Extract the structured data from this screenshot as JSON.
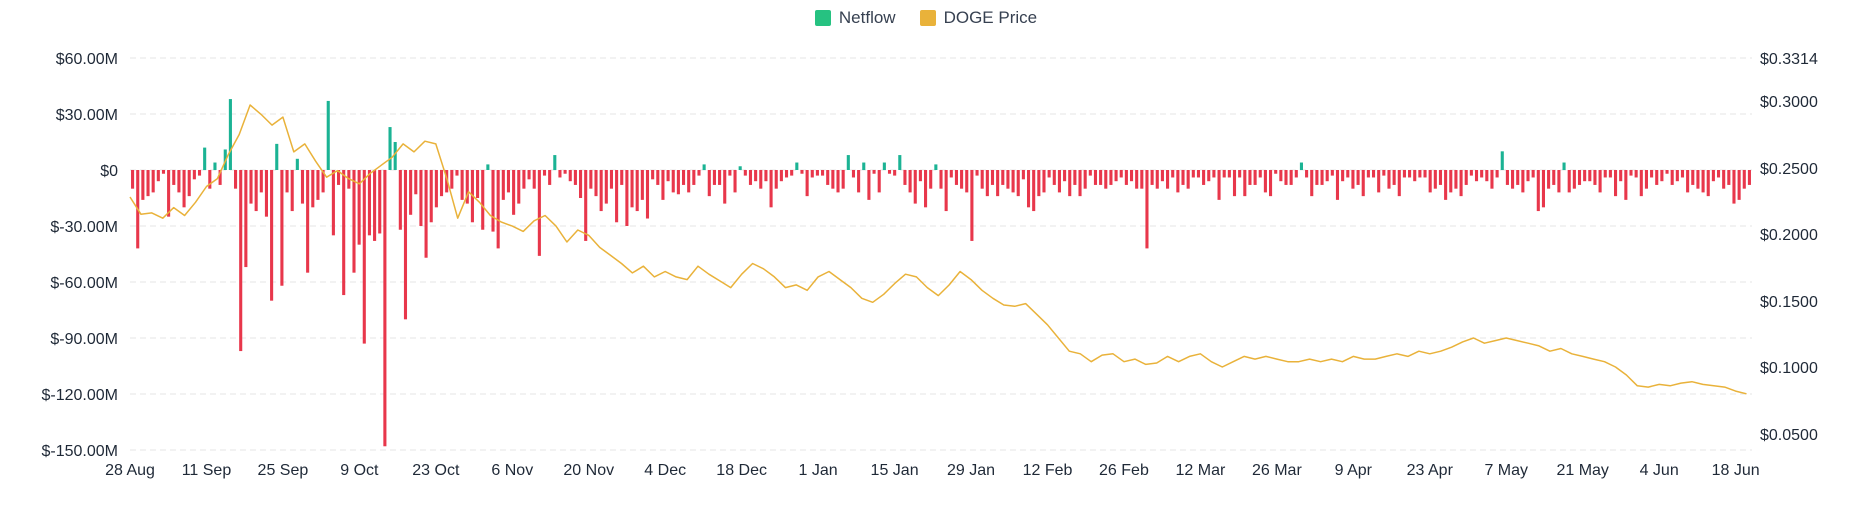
{
  "legend": {
    "netflow_label": "Netflow",
    "price_label": "DOGE Price"
  },
  "colors": {
    "netflow_positive": "#1bb394",
    "netflow_negative": "#e8374b",
    "price_line": "#e9b23a",
    "netflow_legend": "#26c281",
    "price_legend": "#e9b23a",
    "grid": "#e6e6e6"
  },
  "chart_data": {
    "type": "bar",
    "title": "",
    "xlabel": "",
    "ylabel": "",
    "ylim": [
      -150,
      60
    ],
    "y2lim": [
      0.05,
      0.3314
    ],
    "grid": true,
    "legend_position": "top-center",
    "y_ticks": [
      {
        "value": 60,
        "label": "$60.00M"
      },
      {
        "value": 30,
        "label": "$30.00M"
      },
      {
        "value": 0,
        "label": "$0"
      },
      {
        "value": -30,
        "label": "$-30.00M"
      },
      {
        "value": -60,
        "label": "$-60.00M"
      },
      {
        "value": -90,
        "label": "$-90.00M"
      },
      {
        "value": -120,
        "label": "$-120.00M"
      },
      {
        "value": -150,
        "label": "$-150.00M"
      }
    ],
    "y2_ticks": [
      {
        "value": 0.3314,
        "label": "$0.3314"
      },
      {
        "value": 0.3,
        "label": "$0.3000"
      },
      {
        "value": 0.25,
        "label": "$0.2500"
      },
      {
        "value": 0.2,
        "label": "$0.2000"
      },
      {
        "value": 0.15,
        "label": "$0.1500"
      },
      {
        "value": 0.1,
        "label": "$0.1000"
      },
      {
        "value": 0.05,
        "label": "$0.0500"
      }
    ],
    "x_ticks": [
      {
        "day": 0,
        "label": "28 Aug"
      },
      {
        "day": 14,
        "label": "11 Sep"
      },
      {
        "day": 28,
        "label": "25 Sep"
      },
      {
        "day": 42,
        "label": "9 Oct"
      },
      {
        "day": 56,
        "label": "23 Oct"
      },
      {
        "day": 70,
        "label": "6 Nov"
      },
      {
        "day": 84,
        "label": "20 Nov"
      },
      {
        "day": 98,
        "label": "4 Dec"
      },
      {
        "day": 112,
        "label": "18 Dec"
      },
      {
        "day": 126,
        "label": "1 Jan"
      },
      {
        "day": 140,
        "label": "15 Jan"
      },
      {
        "day": 154,
        "label": "29 Jan"
      },
      {
        "day": 168,
        "label": "12 Feb"
      },
      {
        "day": 182,
        "label": "26 Feb"
      },
      {
        "day": 196,
        "label": "12 Mar"
      },
      {
        "day": 210,
        "label": "26 Mar"
      },
      {
        "day": 224,
        "label": "9 Apr"
      },
      {
        "day": 238,
        "label": "23 Apr"
      },
      {
        "day": 252,
        "label": "7 May"
      },
      {
        "day": 266,
        "label": "21 May"
      },
      {
        "day": 280,
        "label": "4 Jun"
      },
      {
        "day": 294,
        "label": "18 Jun"
      }
    ],
    "x_range": [
      0,
      297
    ],
    "series": [
      {
        "name": "Netflow",
        "type": "bar",
        "values": [
          -10,
          -42,
          -16,
          -14,
          -12,
          -6,
          -2,
          -25,
          -8,
          -12,
          -20,
          -14,
          -5,
          -3,
          12,
          -10,
          4,
          -8,
          11,
          38,
          -10,
          -97,
          -52,
          -18,
          -22,
          -12,
          -25,
          -70,
          14,
          -62,
          -12,
          -22,
          6,
          -18,
          -55,
          -20,
          -16,
          -12,
          37,
          -35,
          -8,
          -67,
          -10,
          -55,
          -40,
          -93,
          -35,
          -38,
          -34,
          -148,
          23,
          15,
          -32,
          -80,
          -24,
          -13,
          -30,
          -47,
          -28,
          -20,
          -14,
          -12,
          -10,
          -3,
          -16,
          -18,
          -28,
          -15,
          -32,
          3,
          -33,
          -42,
          -16,
          -12,
          -24,
          -18,
          -10,
          -5,
          -10,
          -46,
          -3,
          -8,
          8,
          -4,
          -2,
          -6,
          -8,
          -15,
          -38,
          -10,
          -14,
          -22,
          -18,
          -10,
          -28,
          -8,
          -30,
          -20,
          -22,
          -16,
          -26,
          -5,
          -8,
          -16,
          -6,
          -12,
          -13,
          -8,
          -12,
          -8,
          -3,
          3,
          -14,
          -8,
          -8,
          -18,
          -3,
          -12,
          2,
          -3,
          -8,
          -6,
          -10,
          -6,
          -20,
          -10,
          -6,
          -4,
          -3,
          4,
          -2,
          -14,
          -4,
          -3,
          -3,
          -8,
          -10,
          -12,
          -10,
          8,
          -4,
          -12,
          4,
          -16,
          -2,
          -12,
          4,
          -2,
          -3,
          8,
          -8,
          -12,
          -18,
          -6,
          -20,
          -10,
          3,
          -10,
          -22,
          -4,
          -8,
          -10,
          -12,
          -38,
          -3,
          -10,
          -14,
          -8,
          -14,
          -8,
          -10,
          -12,
          -14,
          -5,
          -20,
          -22,
          -14,
          -12,
          -4,
          -8,
          -12,
          -6,
          -14,
          -8,
          -14,
          -10,
          -3,
          -8,
          -8,
          -10,
          -8,
          -6,
          -4,
          -8,
          -6,
          -10,
          -10,
          -42,
          -8,
          -10,
          -6,
          -10,
          -4,
          -12,
          -8,
          -10,
          -4,
          -4,
          -8,
          -6,
          -4,
          -16,
          -4,
          -4,
          -14,
          -4,
          -14,
          -8,
          -8,
          -4,
          -12,
          -14,
          -2,
          -6,
          -8,
          -8,
          -4,
          4,
          -4,
          -14,
          -8,
          -8,
          -6,
          -3,
          -16,
          -6,
          -4,
          -10,
          -8,
          -14,
          -4,
          -4,
          -12,
          -3,
          -10,
          -8,
          -14,
          -4,
          -4,
          -6,
          -4,
          -4,
          -12,
          -10,
          -8,
          -16,
          -12,
          -10,
          -14,
          -8,
          -3,
          -6,
          -4,
          -6,
          -10,
          -4,
          10,
          -8,
          -10,
          -8,
          -12,
          -6,
          -4,
          -22,
          -20,
          -10,
          -8,
          -12,
          4,
          -12,
          -10,
          -8,
          -6,
          -6,
          -8,
          -12,
          -4,
          -4,
          -14,
          -6,
          -16,
          -3,
          -4,
          -14,
          -10,
          -4,
          -8,
          -6,
          -2,
          -8,
          -6,
          -4,
          -12,
          -8,
          -10,
          -12,
          -14,
          -6,
          -4,
          -10,
          -8,
          -18,
          -16,
          -10,
          -8
        ],
        "color": "#1bb394"
      },
      {
        "name": "DOGE Price",
        "type": "line",
        "axis": "right",
        "points": [
          [
            0,
            0.228
          ],
          [
            2,
            0.215
          ],
          [
            4,
            0.216
          ],
          [
            6,
            0.212
          ],
          [
            8,
            0.22
          ],
          [
            10,
            0.214
          ],
          [
            12,
            0.224
          ],
          [
            14,
            0.236
          ],
          [
            16,
            0.242
          ],
          [
            18,
            0.26
          ],
          [
            20,
            0.275
          ],
          [
            22,
            0.297
          ],
          [
            24,
            0.29
          ],
          [
            26,
            0.282
          ],
          [
            28,
            0.288
          ],
          [
            30,
            0.262
          ],
          [
            32,
            0.268
          ],
          [
            34,
            0.255
          ],
          [
            36,
            0.243
          ],
          [
            38,
            0.248
          ],
          [
            40,
            0.242
          ],
          [
            42,
            0.238
          ],
          [
            44,
            0.246
          ],
          [
            46,
            0.252
          ],
          [
            48,
            0.258
          ],
          [
            50,
            0.268
          ],
          [
            52,
            0.262
          ],
          [
            54,
            0.27
          ],
          [
            56,
            0.268
          ],
          [
            58,
            0.242
          ],
          [
            60,
            0.212
          ],
          [
            62,
            0.232
          ],
          [
            64,
            0.224
          ],
          [
            66,
            0.214
          ],
          [
            68,
            0.209
          ],
          [
            70,
            0.206
          ],
          [
            72,
            0.202
          ],
          [
            74,
            0.21
          ],
          [
            76,
            0.214
          ],
          [
            78,
            0.206
          ],
          [
            80,
            0.194
          ],
          [
            82,
            0.203
          ],
          [
            84,
            0.199
          ],
          [
            86,
            0.19
          ],
          [
            88,
            0.184
          ],
          [
            90,
            0.178
          ],
          [
            92,
            0.171
          ],
          [
            94,
            0.176
          ],
          [
            96,
            0.168
          ],
          [
            98,
            0.172
          ],
          [
            100,
            0.168
          ],
          [
            102,
            0.166
          ],
          [
            104,
            0.176
          ],
          [
            106,
            0.17
          ],
          [
            108,
            0.165
          ],
          [
            110,
            0.16
          ],
          [
            112,
            0.17
          ],
          [
            114,
            0.178
          ],
          [
            116,
            0.174
          ],
          [
            118,
            0.168
          ],
          [
            120,
            0.16
          ],
          [
            122,
            0.162
          ],
          [
            124,
            0.158
          ],
          [
            126,
            0.168
          ],
          [
            128,
            0.172
          ],
          [
            130,
            0.166
          ],
          [
            132,
            0.16
          ],
          [
            134,
            0.152
          ],
          [
            136,
            0.149
          ],
          [
            138,
            0.155
          ],
          [
            140,
            0.163
          ],
          [
            142,
            0.17
          ],
          [
            144,
            0.168
          ],
          [
            146,
            0.16
          ],
          [
            148,
            0.154
          ],
          [
            150,
            0.162
          ],
          [
            152,
            0.172
          ],
          [
            154,
            0.166
          ],
          [
            156,
            0.158
          ],
          [
            158,
            0.152
          ],
          [
            160,
            0.147
          ],
          [
            162,
            0.146
          ],
          [
            164,
            0.148
          ],
          [
            166,
            0.14
          ],
          [
            168,
            0.132
          ],
          [
            170,
            0.122
          ],
          [
            172,
            0.112
          ],
          [
            174,
            0.11
          ],
          [
            176,
            0.104
          ],
          [
            178,
            0.109
          ],
          [
            180,
            0.11
          ],
          [
            182,
            0.104
          ],
          [
            184,
            0.106
          ],
          [
            186,
            0.102
          ],
          [
            188,
            0.103
          ],
          [
            190,
            0.108
          ],
          [
            192,
            0.104
          ],
          [
            194,
            0.108
          ],
          [
            196,
            0.11
          ],
          [
            198,
            0.104
          ],
          [
            200,
            0.1
          ],
          [
            202,
            0.104
          ],
          [
            204,
            0.108
          ],
          [
            206,
            0.106
          ],
          [
            208,
            0.108
          ],
          [
            210,
            0.106
          ],
          [
            212,
            0.104
          ],
          [
            214,
            0.104
          ],
          [
            216,
            0.106
          ],
          [
            218,
            0.104
          ],
          [
            220,
            0.106
          ],
          [
            222,
            0.104
          ],
          [
            224,
            0.108
          ],
          [
            226,
            0.106
          ],
          [
            228,
            0.106
          ],
          [
            230,
            0.108
          ],
          [
            232,
            0.11
          ],
          [
            234,
            0.108
          ],
          [
            236,
            0.112
          ],
          [
            238,
            0.11
          ],
          [
            240,
            0.112
          ],
          [
            242,
            0.115
          ],
          [
            244,
            0.119
          ],
          [
            246,
            0.122
          ],
          [
            248,
            0.118
          ],
          [
            250,
            0.12
          ],
          [
            252,
            0.122
          ],
          [
            254,
            0.12
          ],
          [
            256,
            0.118
          ],
          [
            258,
            0.116
          ],
          [
            260,
            0.112
          ],
          [
            262,
            0.114
          ],
          [
            264,
            0.11
          ],
          [
            266,
            0.108
          ],
          [
            268,
            0.106
          ],
          [
            270,
            0.104
          ],
          [
            272,
            0.1
          ],
          [
            274,
            0.094
          ],
          [
            276,
            0.086
          ],
          [
            278,
            0.085
          ],
          [
            280,
            0.087
          ],
          [
            282,
            0.086
          ],
          [
            284,
            0.088
          ],
          [
            286,
            0.089
          ],
          [
            288,
            0.087
          ],
          [
            290,
            0.086
          ],
          [
            292,
            0.085
          ],
          [
            294,
            0.082
          ],
          [
            296,
            0.08
          ]
        ],
        "color": "#e9b23a"
      }
    ]
  }
}
